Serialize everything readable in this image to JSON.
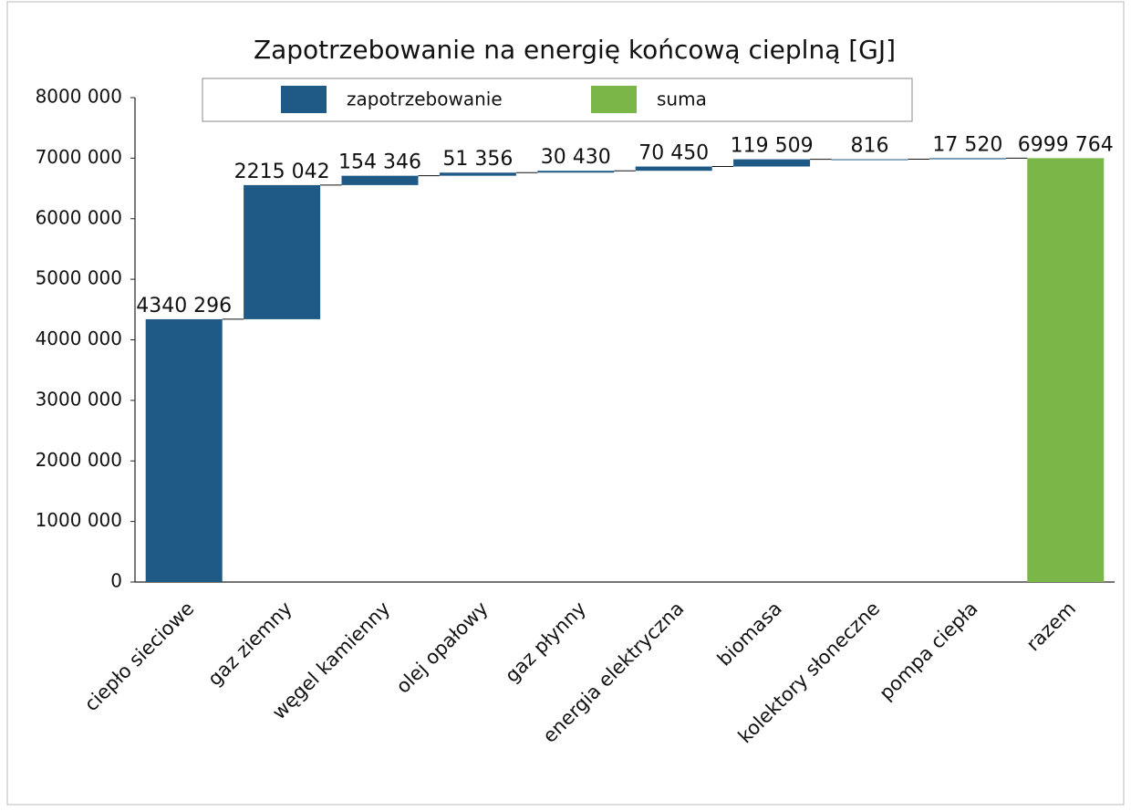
{
  "chart_data": {
    "type": "waterfall",
    "title": "Zapotrzebowanie na energię końcową cieplną [GJ]",
    "categories": [
      "ciepło sieciowe",
      "gaz ziemny",
      "węgel kamienny",
      "olej opałowy",
      "gaz płynny",
      "energia elektryczna",
      "biomasa",
      "kolektory słoneczne",
      "pompa ciepła",
      "razem"
    ],
    "series": [
      {
        "name": "zapotrzebowanie",
        "color": "#1f5a86",
        "values": [
          4340296,
          2215042,
          154346,
          51356,
          30430,
          70450,
          119509,
          816,
          17520,
          null
        ],
        "value_labels": [
          "4340 296",
          "2215 042",
          "154 346",
          "51 356",
          "30 430",
          "70 450",
          "119 509",
          "816",
          "17 520",
          null
        ]
      },
      {
        "name": "suma",
        "color": "#7ab648",
        "values": [
          null,
          null,
          null,
          null,
          null,
          null,
          null,
          null,
          null,
          6999764
        ],
        "value_labels": [
          null,
          null,
          null,
          null,
          null,
          null,
          null,
          null,
          null,
          "6999 764"
        ]
      }
    ],
    "ylim": [
      0,
      8000000
    ],
    "yticks": [
      0,
      {
        "value": 1000000,
        "label": "1000 000"
      },
      {
        "value": 2000000,
        "label": "2000 000"
      },
      {
        "value": 3000000,
        "label": "3000 000"
      },
      {
        "value": 4000000,
        "label": "4000 000"
      },
      {
        "value": 5000000,
        "label": "5000 000"
      },
      {
        "value": 6000000,
        "label": "6000 000"
      },
      {
        "value": 7000000,
        "label": "7000 000"
      },
      {
        "value": 8000000,
        "label": "8000 000"
      }
    ],
    "grid": false,
    "legend": "top"
  }
}
